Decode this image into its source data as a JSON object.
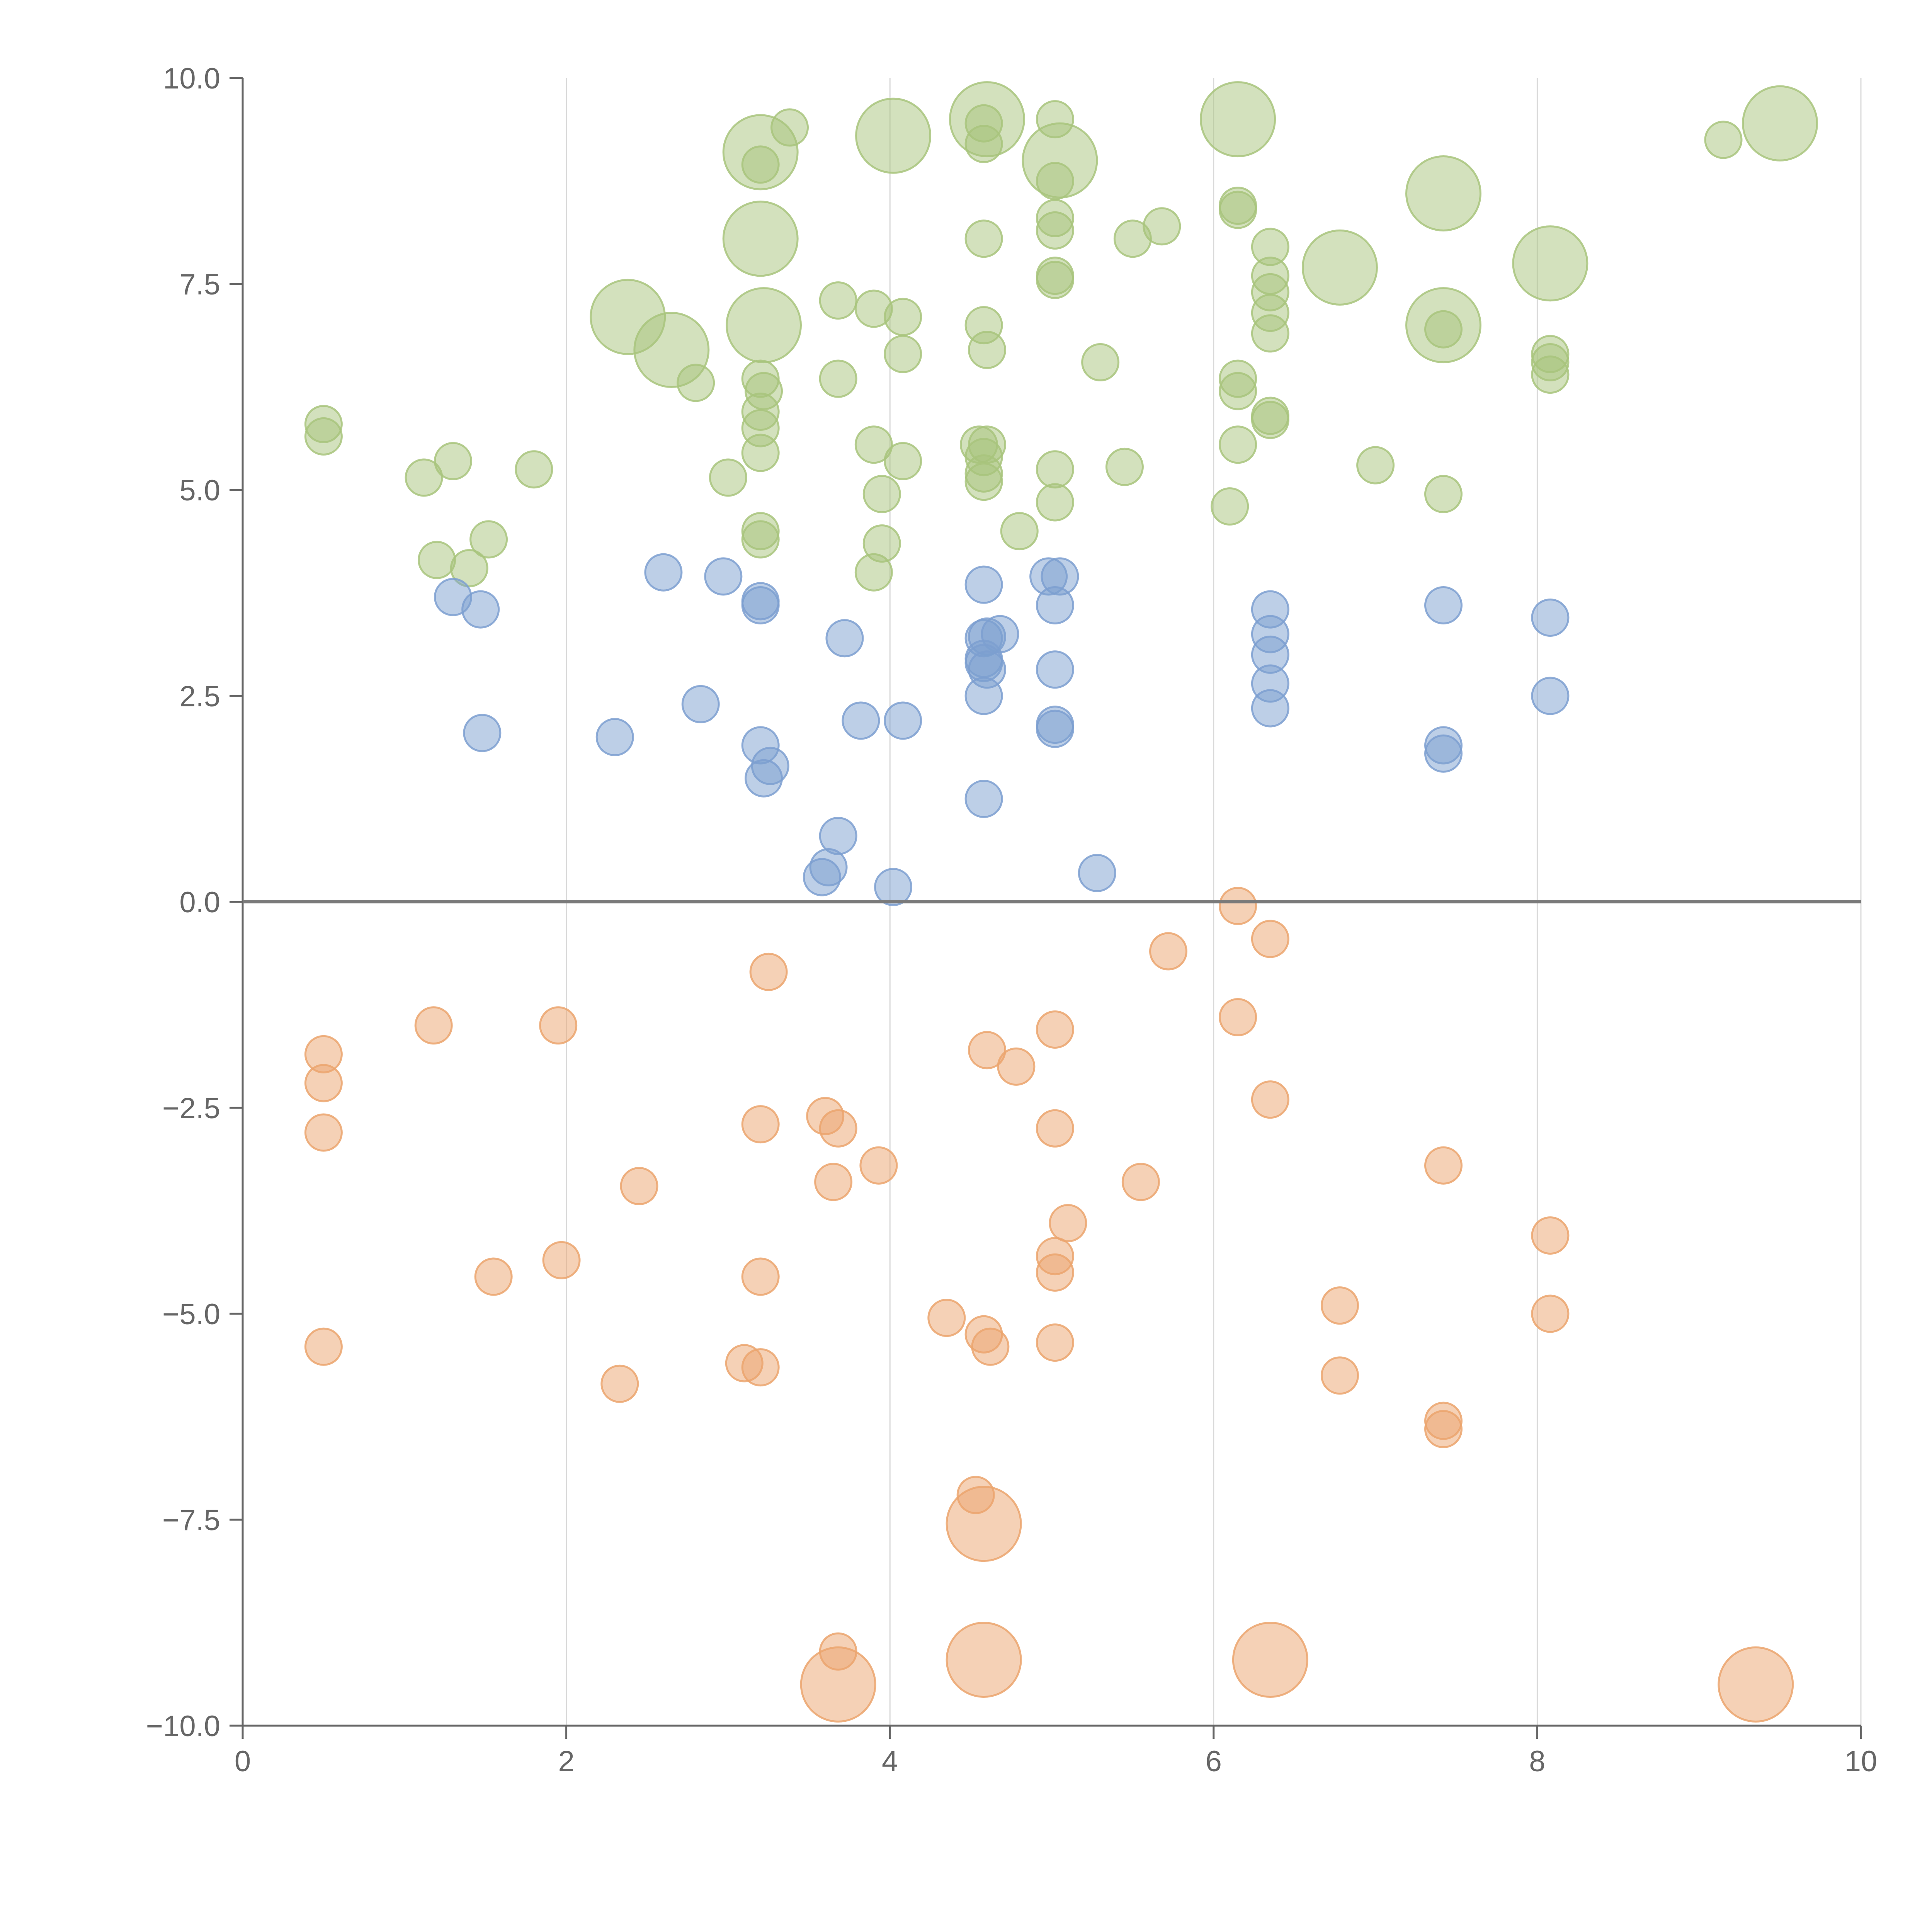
{
  "chart_data": {
    "type": "scatter",
    "title": "",
    "xlabel": "",
    "ylabel": "",
    "xlim": [
      0,
      10
    ],
    "ylim": [
      -10,
      10
    ],
    "x_ticks": [
      0,
      2,
      4,
      6,
      8,
      10
    ],
    "x_tick_labels": [
      "0",
      "2",
      "4",
      "6",
      "8",
      "10"
    ],
    "y_ticks": [
      10,
      7.5,
      5,
      2.5,
      0,
      -2.5,
      -5,
      -7.5,
      -10
    ],
    "y_tick_labels": [
      "10.0",
      "7.5",
      "5.0",
      "2.5",
      "0.0",
      "−2.5",
      "−5.0",
      "−7.5",
      "−10.0"
    ],
    "grid": "vertical lines at x ticks",
    "reference_line_y": 0,
    "legend": "none",
    "bubble_sizes": "small circles; larger circles emphasize extreme points",
    "series": [
      {
        "color": "#a8c47c",
        "points": [
          [
            0.5,
            5.8,
            1
          ],
          [
            0.5,
            5.65,
            1
          ],
          [
            1.12,
            5.15,
            1
          ],
          [
            1.3,
            5.35,
            1
          ],
          [
            1.8,
            5.25,
            1
          ],
          [
            1.2,
            4.15,
            1
          ],
          [
            1.4,
            4.05,
            1
          ],
          [
            1.52,
            4.4,
            1
          ],
          [
            2.38,
            7.1,
            3
          ],
          [
            2.65,
            6.7,
            3
          ],
          [
            2.8,
            6.3,
            1
          ],
          [
            3.0,
            5.15,
            1
          ],
          [
            3.2,
            9.1,
            3
          ],
          [
            3.2,
            8.95,
            1
          ],
          [
            3.38,
            9.4,
            1
          ],
          [
            3.2,
            8.05,
            3
          ],
          [
            3.22,
            7.0,
            3
          ],
          [
            3.2,
            6.35,
            1
          ],
          [
            3.22,
            6.2,
            1
          ],
          [
            3.2,
            5.95,
            1
          ],
          [
            3.2,
            5.75,
            1
          ],
          [
            3.2,
            5.45,
            1
          ],
          [
            3.2,
            4.5,
            1
          ],
          [
            3.2,
            4.4,
            1
          ],
          [
            3.68,
            7.3,
            1
          ],
          [
            3.68,
            6.35,
            1
          ],
          [
            3.9,
            7.2,
            1
          ],
          [
            3.9,
            5.55,
            1
          ],
          [
            3.9,
            4.0,
            1
          ],
          [
            3.95,
            4.95,
            1
          ],
          [
            3.95,
            4.35,
            1
          ],
          [
            4.02,
            9.3,
            3
          ],
          [
            4.08,
            7.1,
            1
          ],
          [
            4.08,
            6.65,
            1
          ],
          [
            4.08,
            5.35,
            1
          ],
          [
            4.6,
            9.5,
            3
          ],
          [
            4.58,
            9.45,
            1
          ],
          [
            4.58,
            9.2,
            1
          ],
          [
            4.58,
            8.05,
            1
          ],
          [
            4.58,
            7.0,
            1
          ],
          [
            4.6,
            6.7,
            1
          ],
          [
            4.55,
            5.55,
            1
          ],
          [
            4.6,
            5.55,
            1
          ],
          [
            4.58,
            5.4,
            1
          ],
          [
            4.58,
            5.2,
            1
          ],
          [
            4.58,
            5.1,
            1
          ],
          [
            4.8,
            4.5,
            1
          ],
          [
            5.02,
            9.5,
            1
          ],
          [
            5.05,
            9.0,
            3
          ],
          [
            5.02,
            8.75,
            1
          ],
          [
            5.02,
            8.3,
            1
          ],
          [
            5.02,
            8.15,
            1
          ],
          [
            5.02,
            7.6,
            1
          ],
          [
            5.02,
            7.55,
            1
          ],
          [
            5.02,
            5.25,
            1
          ],
          [
            5.02,
            4.85,
            1
          ],
          [
            5.3,
            6.55,
            1
          ],
          [
            5.5,
            8.05,
            1
          ],
          [
            5.68,
            8.2,
            1
          ],
          [
            5.45,
            5.28,
            1
          ],
          [
            6.15,
            9.5,
            3
          ],
          [
            6.15,
            8.45,
            1
          ],
          [
            6.15,
            8.4,
            1
          ],
          [
            6.15,
            6.35,
            1
          ],
          [
            6.15,
            6.2,
            1
          ],
          [
            6.15,
            5.55,
            1
          ],
          [
            6.1,
            4.8,
            1
          ],
          [
            6.35,
            7.95,
            1
          ],
          [
            6.35,
            7.6,
            1
          ],
          [
            6.35,
            7.4,
            1
          ],
          [
            6.35,
            7.15,
            1
          ],
          [
            6.35,
            6.9,
            1
          ],
          [
            6.35,
            5.9,
            1
          ],
          [
            6.35,
            5.85,
            1
          ],
          [
            6.78,
            7.7,
            3
          ],
          [
            7.0,
            5.3,
            1
          ],
          [
            7.42,
            8.6,
            3
          ],
          [
            7.42,
            7.0,
            3
          ],
          [
            7.42,
            6.95,
            1
          ],
          [
            7.42,
            4.95,
            1
          ],
          [
            8.08,
            7.75,
            3
          ],
          [
            8.08,
            6.65,
            1
          ],
          [
            8.08,
            6.55,
            1
          ],
          [
            8.08,
            6.4,
            1
          ],
          [
            9.15,
            9.25,
            1
          ],
          [
            9.5,
            9.45,
            3
          ]
        ]
      },
      {
        "color": "#7c9fd0",
        "points": [
          [
            1.3,
            3.7,
            1
          ],
          [
            1.47,
            3.55,
            1
          ],
          [
            1.48,
            2.05,
            1
          ],
          [
            2.3,
            2.0,
            1
          ],
          [
            2.6,
            4.0,
            1
          ],
          [
            2.83,
            2.4,
            1
          ],
          [
            2.97,
            3.95,
            1
          ],
          [
            3.2,
            3.6,
            1
          ],
          [
            3.2,
            3.65,
            1
          ],
          [
            3.2,
            1.9,
            1
          ],
          [
            3.26,
            1.65,
            1
          ],
          [
            3.22,
            1.5,
            1
          ],
          [
            3.72,
            3.2,
            1
          ],
          [
            3.82,
            2.2,
            1
          ],
          [
            4.08,
            2.2,
            1
          ],
          [
            3.68,
            0.8,
            1
          ],
          [
            3.62,
            0.42,
            1
          ],
          [
            3.58,
            0.3,
            1
          ],
          [
            4.02,
            0.18,
            1
          ],
          [
            4.58,
            3.85,
            1
          ],
          [
            4.58,
            3.2,
            1
          ],
          [
            4.6,
            3.22,
            1
          ],
          [
            4.68,
            3.25,
            1
          ],
          [
            4.58,
            2.95,
            1
          ],
          [
            4.58,
            2.9,
            1
          ],
          [
            4.6,
            2.82,
            1
          ],
          [
            4.58,
            2.5,
            1
          ],
          [
            4.58,
            1.25,
            1
          ],
          [
            4.98,
            3.95,
            1
          ],
          [
            5.05,
            3.95,
            1
          ],
          [
            5.02,
            3.6,
            1
          ],
          [
            5.02,
            2.82,
            1
          ],
          [
            5.02,
            2.15,
            1
          ],
          [
            5.02,
            2.1,
            1
          ],
          [
            5.28,
            0.35,
            1
          ],
          [
            6.35,
            3.55,
            1
          ],
          [
            6.35,
            3.25,
            1
          ],
          [
            6.35,
            3.0,
            1
          ],
          [
            6.35,
            2.65,
            1
          ],
          [
            6.35,
            2.35,
            1
          ],
          [
            7.42,
            3.6,
            1
          ],
          [
            7.42,
            1.9,
            1
          ],
          [
            7.42,
            1.8,
            1
          ],
          [
            8.08,
            3.45,
            1
          ],
          [
            8.08,
            2.5,
            1
          ]
        ]
      },
      {
        "color": "#eba46d",
        "points": [
          [
            0.5,
            -1.85,
            1
          ],
          [
            0.5,
            -2.2,
            1
          ],
          [
            0.5,
            -2.8,
            1
          ],
          [
            0.5,
            -5.4,
            1
          ],
          [
            1.18,
            -1.5,
            1
          ],
          [
            1.95,
            -1.5,
            1
          ],
          [
            1.55,
            -4.55,
            1
          ],
          [
            1.97,
            -4.35,
            1
          ],
          [
            2.45,
            -3.45,
            1
          ],
          [
            2.33,
            -5.85,
            1
          ],
          [
            3.25,
            -0.85,
            1
          ],
          [
            3.2,
            -2.7,
            1
          ],
          [
            3.2,
            -4.55,
            1
          ],
          [
            3.1,
            -5.6,
            1
          ],
          [
            3.2,
            -5.65,
            1
          ],
          [
            3.6,
            -2.6,
            1
          ],
          [
            3.68,
            -2.75,
            1
          ],
          [
            3.65,
            -3.4,
            1
          ],
          [
            3.93,
            -3.2,
            1
          ],
          [
            3.68,
            -9.1,
            1
          ],
          [
            3.68,
            -9.5,
            3
          ],
          [
            4.35,
            -5.05,
            1
          ],
          [
            4.6,
            -1.8,
            1
          ],
          [
            4.78,
            -2.0,
            1
          ],
          [
            4.58,
            -5.25,
            1
          ],
          [
            4.62,
            -5.4,
            1
          ],
          [
            4.53,
            -7.2,
            1
          ],
          [
            4.58,
            -7.55,
            3
          ],
          [
            4.58,
            -9.2,
            3
          ],
          [
            5.02,
            -1.55,
            1
          ],
          [
            5.02,
            -2.75,
            1
          ],
          [
            5.1,
            -3.9,
            1
          ],
          [
            5.02,
            -4.3,
            1
          ],
          [
            5.02,
            -4.5,
            1
          ],
          [
            5.02,
            -5.35,
            1
          ],
          [
            5.72,
            -0.6,
            1
          ],
          [
            5.55,
            -3.4,
            1
          ],
          [
            6.15,
            -0.05,
            1
          ],
          [
            6.35,
            -0.45,
            1
          ],
          [
            6.15,
            -1.4,
            1
          ],
          [
            6.35,
            -2.4,
            1
          ],
          [
            6.35,
            -9.2,
            3
          ],
          [
            6.78,
            -4.9,
            1
          ],
          [
            6.78,
            -5.75,
            1
          ],
          [
            7.42,
            -3.2,
            1
          ],
          [
            7.42,
            -6.3,
            1
          ],
          [
            7.42,
            -6.4,
            1
          ],
          [
            8.08,
            -4.05,
            1
          ],
          [
            8.08,
            -5.0,
            1
          ],
          [
            9.35,
            -9.5,
            3
          ]
        ]
      }
    ]
  }
}
